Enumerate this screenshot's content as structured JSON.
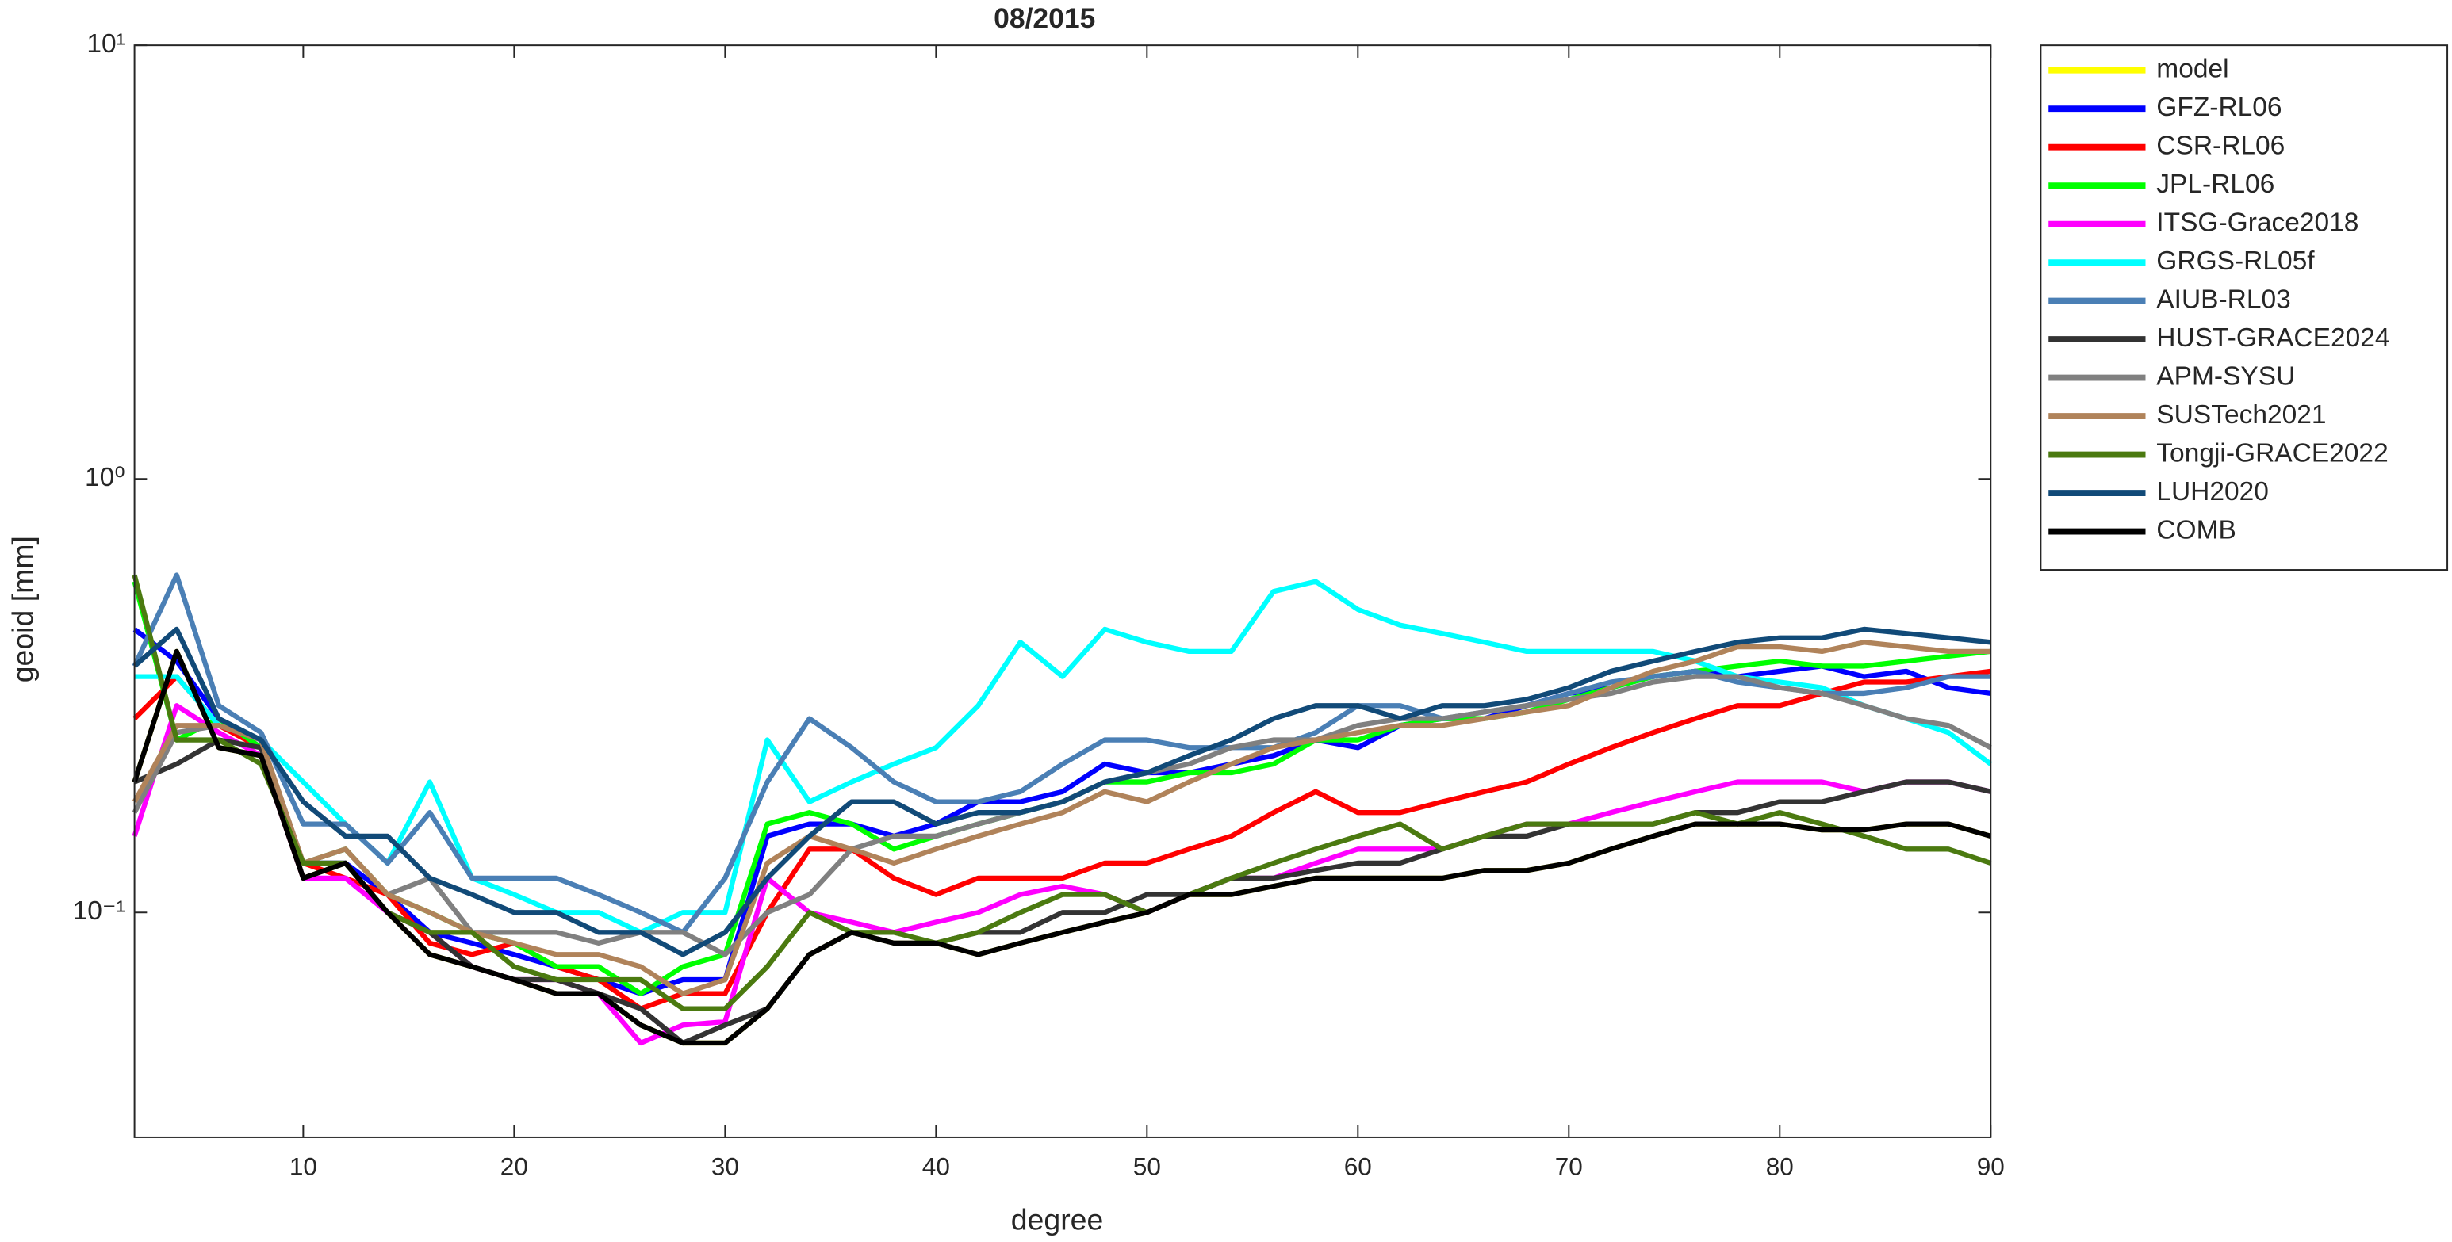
{
  "chart_data": {
    "type": "line",
    "title": "08/2015",
    "x_label": "degree",
    "y_label": "geoid [mm]",
    "log_scale_y": true,
    "legend_position": "outside-right",
    "xlim": [
      2,
      90
    ],
    "ylim": [
      0.0303,
      10
    ],
    "xticks": [
      10,
      20,
      30,
      40,
      50,
      60,
      70,
      80,
      90
    ],
    "yticks": [
      {
        "value": 0.1,
        "label": "10⁻¹"
      },
      {
        "value": 1,
        "label": "10⁰"
      },
      {
        "value": 10,
        "label": "10¹"
      }
    ],
    "x": [
      2,
      4,
      6,
      8,
      10,
      12,
      14,
      16,
      18,
      20,
      22,
      24,
      26,
      28,
      30,
      32,
      34,
      36,
      38,
      40,
      42,
      44,
      46,
      48,
      50,
      52,
      54,
      56,
      58,
      60,
      62,
      64,
      66,
      68,
      70,
      72,
      74,
      76,
      78,
      80,
      82,
      84,
      86,
      88,
      90
    ],
    "series": [
      {
        "name": "model",
        "color": "#ffff00",
        "values": [
          0.2,
          0.4,
          0.24,
          0.23,
          0.12,
          0.13,
          0.1,
          0.08,
          0.075,
          0.07,
          0.065,
          0.065,
          0.055,
          0.05,
          0.05,
          0.06,
          0.08,
          0.09,
          0.085,
          0.085,
          0.08,
          0.085,
          0.09,
          0.095,
          0.1,
          0.11,
          0.11,
          0.115,
          0.12,
          0.12,
          0.12,
          0.12,
          0.125,
          0.125,
          0.13,
          0.14,
          0.15,
          0.16,
          0.16,
          0.16,
          0.155,
          0.155,
          0.16,
          0.16,
          0.15
        ]
      },
      {
        "name": "GFZ-RL06",
        "color": "#0000ff",
        "values": [
          0.45,
          0.38,
          0.28,
          0.24,
          0.13,
          0.13,
          0.11,
          0.09,
          0.085,
          0.08,
          0.075,
          0.07,
          0.065,
          0.07,
          0.07,
          0.15,
          0.16,
          0.16,
          0.15,
          0.16,
          0.18,
          0.18,
          0.19,
          0.22,
          0.21,
          0.21,
          0.22,
          0.23,
          0.25,
          0.24,
          0.27,
          0.28,
          0.28,
          0.3,
          0.32,
          0.33,
          0.35,
          0.36,
          0.35,
          0.36,
          0.37,
          0.35,
          0.36,
          0.33,
          0.32
        ]
      },
      {
        "name": "CSR-RL06",
        "color": "#ff0000",
        "values": [
          0.28,
          0.35,
          0.27,
          0.24,
          0.13,
          0.12,
          0.11,
          0.085,
          0.08,
          0.085,
          0.075,
          0.07,
          0.06,
          0.065,
          0.065,
          0.1,
          0.14,
          0.14,
          0.12,
          0.11,
          0.12,
          0.12,
          0.12,
          0.13,
          0.13,
          0.14,
          0.15,
          0.17,
          0.19,
          0.17,
          0.17,
          0.18,
          0.19,
          0.2,
          0.22,
          0.24,
          0.26,
          0.28,
          0.3,
          0.3,
          0.32,
          0.34,
          0.34,
          0.35,
          0.36
        ]
      },
      {
        "name": "JPL-RL06",
        "color": "#00ff00",
        "values": [
          0.58,
          0.25,
          0.28,
          0.24,
          0.13,
          0.14,
          0.11,
          0.1,
          0.09,
          0.085,
          0.075,
          0.075,
          0.065,
          0.075,
          0.08,
          0.16,
          0.17,
          0.16,
          0.14,
          0.15,
          0.16,
          0.17,
          0.18,
          0.2,
          0.2,
          0.21,
          0.21,
          0.22,
          0.25,
          0.25,
          0.27,
          0.28,
          0.28,
          0.29,
          0.31,
          0.33,
          0.35,
          0.36,
          0.37,
          0.38,
          0.37,
          0.37,
          0.38,
          0.39,
          0.4
        ]
      },
      {
        "name": "ITSG-Grace2018",
        "color": "#ff00ff",
        "values": [
          0.15,
          0.3,
          0.26,
          0.23,
          0.12,
          0.12,
          0.1,
          0.09,
          0.075,
          0.07,
          0.07,
          0.065,
          0.05,
          0.055,
          0.056,
          0.12,
          0.1,
          0.095,
          0.09,
          0.095,
          0.1,
          0.11,
          0.115,
          0.11,
          0.1,
          0.11,
          0.12,
          0.12,
          0.13,
          0.14,
          0.14,
          0.14,
          0.15,
          0.16,
          0.16,
          0.17,
          0.18,
          0.19,
          0.2,
          0.2,
          0.2,
          0.19,
          0.2,
          0.2,
          0.19
        ]
      },
      {
        "name": "GRGS-RL05f",
        "color": "#00ffff",
        "values": [
          0.35,
          0.35,
          0.27,
          0.25,
          0.2,
          0.16,
          0.13,
          0.2,
          0.12,
          0.11,
          0.1,
          0.1,
          0.09,
          0.1,
          0.1,
          0.25,
          0.18,
          0.2,
          0.22,
          0.24,
          0.3,
          0.42,
          0.35,
          0.45,
          0.42,
          0.4,
          0.4,
          0.55,
          0.58,
          0.5,
          0.46,
          0.44,
          0.42,
          0.4,
          0.4,
          0.4,
          0.4,
          0.38,
          0.35,
          0.34,
          0.33,
          0.3,
          0.28,
          0.26,
          0.22
        ]
      },
      {
        "name": "AIUB-RL03",
        "color": "#4a7fb5",
        "values": [
          0.37,
          0.6,
          0.3,
          0.26,
          0.16,
          0.16,
          0.13,
          0.17,
          0.12,
          0.12,
          0.12,
          0.11,
          0.1,
          0.09,
          0.12,
          0.2,
          0.28,
          0.24,
          0.2,
          0.18,
          0.18,
          0.19,
          0.22,
          0.25,
          0.25,
          0.24,
          0.24,
          0.24,
          0.26,
          0.3,
          0.3,
          0.28,
          0.29,
          0.3,
          0.32,
          0.34,
          0.35,
          0.36,
          0.34,
          0.33,
          0.32,
          0.32,
          0.33,
          0.35,
          0.35
        ]
      },
      {
        "name": "HUST-GRACE2024",
        "color": "#333333",
        "values": [
          0.2,
          0.22,
          0.25,
          0.24,
          0.12,
          0.13,
          0.1,
          0.09,
          0.075,
          0.07,
          0.07,
          0.065,
          0.06,
          0.05,
          0.055,
          0.06,
          0.08,
          0.09,
          0.085,
          0.085,
          0.09,
          0.09,
          0.1,
          0.1,
          0.11,
          0.11,
          0.12,
          0.12,
          0.125,
          0.13,
          0.13,
          0.14,
          0.15,
          0.15,
          0.16,
          0.16,
          0.16,
          0.17,
          0.17,
          0.18,
          0.18,
          0.19,
          0.2,
          0.2,
          0.19
        ]
      },
      {
        "name": "APM-SYSU",
        "color": "#808080",
        "values": [
          0.17,
          0.26,
          0.27,
          0.25,
          0.13,
          0.14,
          0.11,
          0.12,
          0.09,
          0.09,
          0.09,
          0.085,
          0.09,
          0.09,
          0.08,
          0.1,
          0.11,
          0.14,
          0.15,
          0.15,
          0.16,
          0.17,
          0.18,
          0.2,
          0.21,
          0.22,
          0.24,
          0.25,
          0.25,
          0.27,
          0.28,
          0.28,
          0.29,
          0.3,
          0.31,
          0.32,
          0.34,
          0.35,
          0.35,
          0.33,
          0.32,
          0.3,
          0.28,
          0.27,
          0.24
        ]
      },
      {
        "name": "SUSTech2021",
        "color": "#b0835a",
        "values": [
          0.18,
          0.27,
          0.27,
          0.25,
          0.13,
          0.14,
          0.11,
          0.1,
          0.09,
          0.085,
          0.08,
          0.08,
          0.075,
          0.065,
          0.07,
          0.13,
          0.15,
          0.14,
          0.13,
          0.14,
          0.15,
          0.16,
          0.17,
          0.19,
          0.18,
          0.2,
          0.22,
          0.24,
          0.25,
          0.26,
          0.27,
          0.27,
          0.28,
          0.29,
          0.3,
          0.33,
          0.36,
          0.38,
          0.41,
          0.41,
          0.4,
          0.42,
          0.41,
          0.4,
          0.4
        ]
      },
      {
        "name": "Tongji-GRACE2022",
        "color": "#4b7a10",
        "values": [
          0.6,
          0.25,
          0.25,
          0.22,
          0.13,
          0.13,
          0.1,
          0.09,
          0.09,
          0.075,
          0.07,
          0.07,
          0.07,
          0.06,
          0.06,
          0.075,
          0.1,
          0.09,
          0.09,
          0.085,
          0.09,
          0.1,
          0.11,
          0.11,
          0.1,
          0.11,
          0.12,
          0.13,
          0.14,
          0.15,
          0.16,
          0.14,
          0.15,
          0.16,
          0.16,
          0.16,
          0.16,
          0.17,
          0.16,
          0.17,
          0.16,
          0.15,
          0.14,
          0.14,
          0.13
        ]
      },
      {
        "name": "LUH2020",
        "color": "#114a78",
        "values": [
          0.37,
          0.45,
          0.28,
          0.25,
          0.18,
          0.15,
          0.15,
          0.12,
          0.11,
          0.1,
          0.1,
          0.09,
          0.09,
          0.08,
          0.09,
          0.12,
          0.15,
          0.18,
          0.18,
          0.16,
          0.17,
          0.17,
          0.18,
          0.2,
          0.21,
          0.23,
          0.25,
          0.28,
          0.3,
          0.3,
          0.28,
          0.3,
          0.3,
          0.31,
          0.33,
          0.36,
          0.38,
          0.4,
          0.42,
          0.43,
          0.43,
          0.45,
          0.44,
          0.43,
          0.42
        ]
      },
      {
        "name": "COMB",
        "color": "#000000",
        "values": [
          0.2,
          0.4,
          0.24,
          0.23,
          0.12,
          0.13,
          0.1,
          0.08,
          0.075,
          0.07,
          0.065,
          0.065,
          0.055,
          0.05,
          0.05,
          0.06,
          0.08,
          0.09,
          0.085,
          0.085,
          0.08,
          0.085,
          0.09,
          0.095,
          0.1,
          0.11,
          0.11,
          0.115,
          0.12,
          0.12,
          0.12,
          0.12,
          0.125,
          0.125,
          0.13,
          0.14,
          0.15,
          0.16,
          0.16,
          0.16,
          0.155,
          0.155,
          0.16,
          0.16,
          0.15
        ]
      }
    ]
  }
}
